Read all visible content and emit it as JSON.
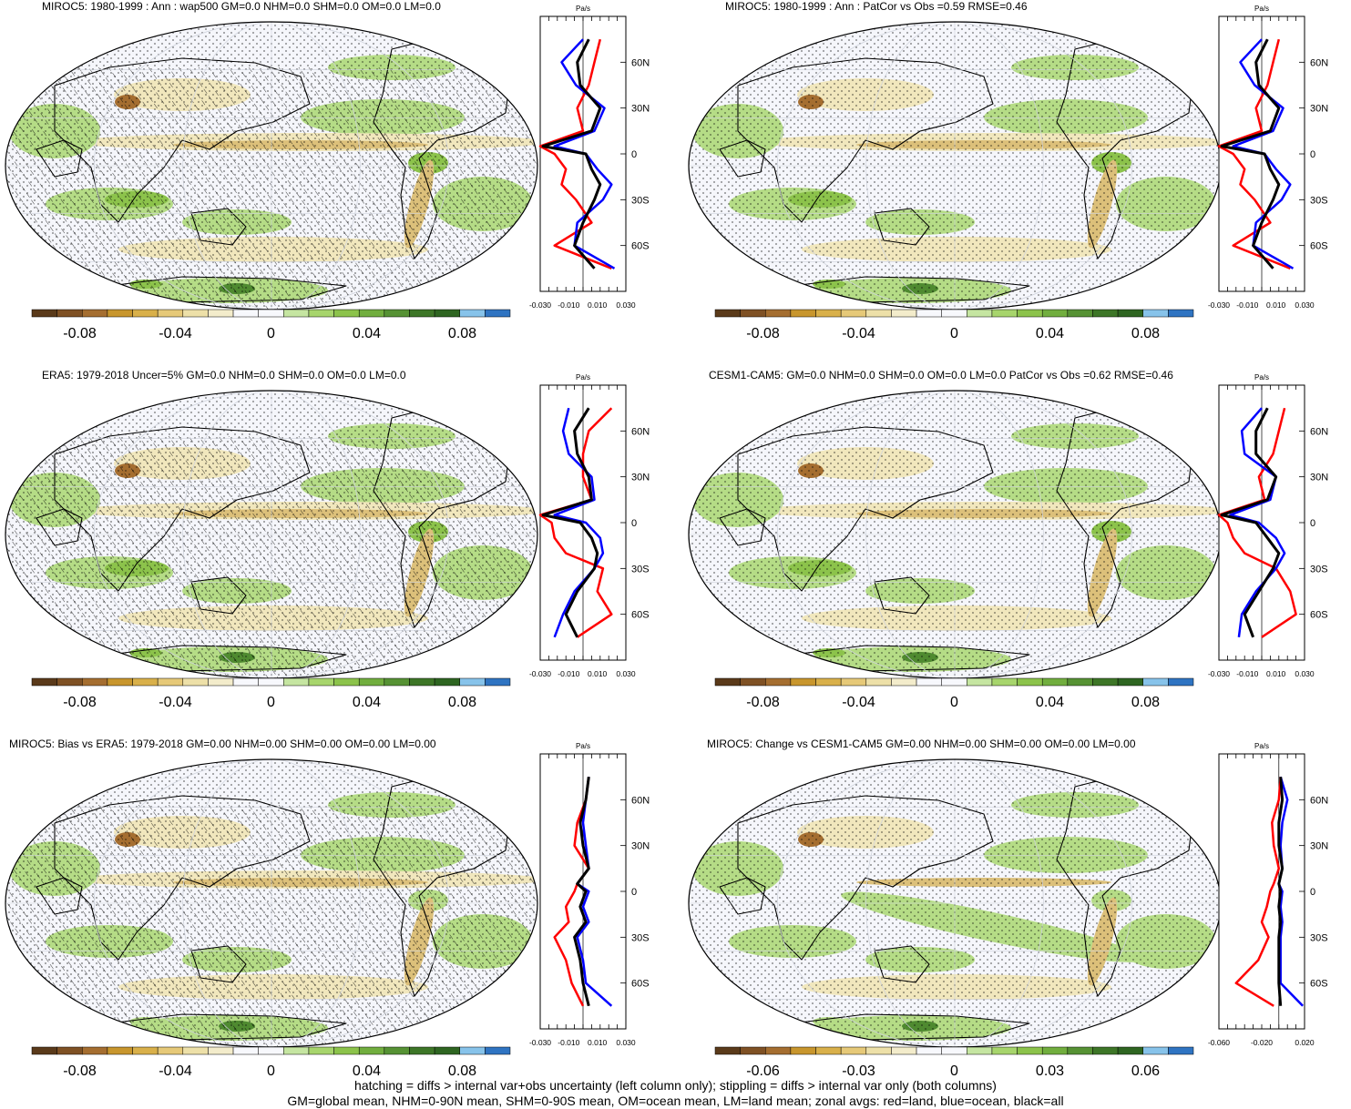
{
  "colors": {
    "scale": [
      "#5a3a1a",
      "#7f5124",
      "#a56e30",
      "#c8962d",
      "#d9b04a",
      "#e6c978",
      "#ede0a8",
      "#f3eccb",
      "#f7f8fc",
      "#f7f8fc",
      "#c5e5a1",
      "#a7d56c",
      "#8cc34b",
      "#71ae3e",
      "#569234",
      "#3d7627",
      "#2e6521",
      "#87c3ea",
      "#2f74c2"
    ],
    "land_line": "#ff0000",
    "ocean_line": "#0000ff",
    "all_line": "#000000"
  },
  "zonal_unit": "Pa/s",
  "lat_labels": [
    "60N",
    "30N",
    "0",
    "30S",
    "60S"
  ],
  "panels": [
    {
      "title": "MIROC5: 1980-1999 : Ann : wap500 GM=0.0 NHM=0.0 SHM=0.0 OM=0.0 LM=0.0",
      "cbar_labels": [
        "-0.08",
        "-0.04",
        "0",
        "0.04",
        "0.08"
      ],
      "zonal_ticks": [
        "-0.030",
        "-0.010",
        "0.010",
        "0.030"
      ]
    },
    {
      "title": "MIROC5: 1980-1999 : Ann : PatCor vs Obs =0.59 RMSE=0.46",
      "cbar_labels": [
        "-0.08",
        "-0.04",
        "0",
        "0.04",
        "0.08"
      ],
      "zonal_ticks": [
        "-0.030",
        "-0.010",
        "0.010",
        "0.030"
      ]
    },
    {
      "title": "ERA5: 1979-2018 Uncer=5% GM=0.0 NHM=0.0 SHM=0.0 OM=0.0 LM=0.0",
      "cbar_labels": [
        "-0.08",
        "-0.04",
        "0",
        "0.04",
        "0.08"
      ],
      "zonal_ticks": [
        "-0.030",
        "-0.010",
        "0.010",
        "0.030"
      ]
    },
    {
      "title": "CESM1-CAM5: GM=0.0 NHM=0.0 SHM=0.0 OM=0.0 LM=0.0 PatCor vs Obs =0.62 RMSE=0.46",
      "cbar_labels": [
        "-0.08",
        "-0.04",
        "0",
        "0.04",
        "0.08"
      ],
      "zonal_ticks": [
        "-0.030",
        "-0.010",
        "0.010",
        "0.030"
      ]
    },
    {
      "title": "MIROC5: Bias vs ERA5: 1979-2018 GM=0.00 NHM=0.00 SHM=0.00 OM=0.00 LM=0.00",
      "cbar_labels": [
        "-0.08",
        "-0.04",
        "0",
        "0.04",
        "0.08"
      ],
      "zonal_ticks": [
        "-0.030",
        "-0.010",
        "0.010",
        "0.030"
      ]
    },
    {
      "title": "MIROC5: Change vs CESM1-CAM5 GM=0.00 NHM=0.00 SHM=0.00 OM=0.00 LM=0.00",
      "cbar_labels": [
        "-0.06",
        "-0.03",
        "0",
        "0.03",
        "0.06"
      ],
      "zonal_ticks": [
        "-0.060",
        "-0.020",
        "0.020"
      ]
    }
  ],
  "footer": {
    "line1": "hatching = diffs > internal var+obs uncertainty (left column only); stippling = diffs > internal var only (both columns)",
    "line2": "GM=global mean, NHM=0-90N mean, SHM=0-90S mean, OM=ocean mean, LM=land mean; zonal avgs: red=land, blue=ocean, black=all"
  },
  "chart_data": [
    {
      "type": "heatmap",
      "title": "MIROC5: 1980-1999 : Ann : wap500 GM=0.0 NHM=0.0 SHM=0.0 OM=0.0 LM=0.0",
      "colorbar_range": [
        -0.1,
        0.1
      ],
      "colorbar_ticks": [
        -0.08,
        -0.04,
        0,
        0.04,
        0.08
      ],
      "hatching": true,
      "zonal_avg": {
        "unit": "Pa/s",
        "xlim": [
          -0.03,
          0.03
        ],
        "lat": [
          75,
          60,
          45,
          30,
          15,
          5,
          0,
          -10,
          -20,
          -30,
          -45,
          -60,
          -75
        ],
        "series": [
          {
            "name": "land",
            "values": [
              0.012,
              0.008,
              0.004,
              -0.004,
              0.0,
              -0.03,
              -0.02,
              -0.012,
              -0.015,
              -0.005,
              0.006,
              -0.02,
              0.02
            ]
          },
          {
            "name": "ocean",
            "values": [
              0.0,
              -0.015,
              -0.005,
              0.015,
              0.008,
              -0.02,
              0.002,
              0.01,
              0.02,
              0.014,
              -0.004,
              -0.006,
              0.022
            ]
          },
          {
            "name": "all",
            "values": [
              0.004,
              -0.004,
              -0.002,
              0.012,
              0.006,
              -0.028,
              0.002,
              0.006,
              0.012,
              0.008,
              0.0,
              -0.006,
              0.008
            ]
          }
        ]
      }
    },
    {
      "type": "heatmap",
      "title": "MIROC5: 1980-1999 : Ann : PatCor vs Obs =0.59 RMSE=0.46",
      "colorbar_range": [
        -0.1,
        0.1
      ],
      "colorbar_ticks": [
        -0.08,
        -0.04,
        0,
        0.04,
        0.08
      ],
      "hatching": false,
      "zonal_avg": {
        "unit": "Pa/s",
        "xlim": [
          -0.03,
          0.03
        ],
        "lat": [
          75,
          60,
          45,
          30,
          15,
          5,
          0,
          -10,
          -20,
          -30,
          -45,
          -60,
          -75
        ],
        "series": [
          {
            "name": "land",
            "values": [
              0.012,
              0.008,
              0.004,
              -0.004,
              0.0,
              -0.03,
              -0.02,
              -0.012,
              -0.015,
              -0.005,
              0.006,
              -0.02,
              0.02
            ]
          },
          {
            "name": "ocean",
            "values": [
              0.0,
              -0.015,
              -0.005,
              0.015,
              0.008,
              -0.02,
              0.002,
              0.01,
              0.02,
              0.014,
              -0.004,
              -0.006,
              0.022
            ]
          },
          {
            "name": "all",
            "values": [
              0.004,
              -0.004,
              -0.002,
              0.012,
              0.006,
              -0.028,
              0.002,
              0.006,
              0.012,
              0.008,
              0.0,
              -0.006,
              0.008
            ]
          }
        ]
      }
    },
    {
      "type": "heatmap",
      "title": "ERA5: 1979-2018 Uncer=5% GM=0.0 NHM=0.0 SHM=0.0 OM=0.0 LM=0.0",
      "colorbar_range": [
        -0.1,
        0.1
      ],
      "colorbar_ticks": [
        -0.08,
        -0.04,
        0,
        0.04,
        0.08
      ],
      "hatching": true,
      "zonal_avg": {
        "unit": "Pa/s",
        "xlim": [
          -0.03,
          0.03
        ],
        "lat": [
          75,
          60,
          45,
          30,
          15,
          5,
          0,
          -10,
          -20,
          -30,
          -45,
          -60,
          -75
        ],
        "series": [
          {
            "name": "land",
            "values": [
              0.02,
              0.004,
              0.0,
              0.0,
              0.006,
              -0.03,
              -0.022,
              -0.02,
              -0.012,
              0.014,
              0.01,
              0.02,
              -0.004
            ]
          },
          {
            "name": "ocean",
            "values": [
              -0.01,
              -0.014,
              -0.01,
              0.006,
              0.008,
              -0.02,
              0.002,
              0.012,
              0.014,
              0.008,
              -0.006,
              -0.014,
              -0.02
            ]
          },
          {
            "name": "all",
            "values": [
              0.004,
              -0.006,
              -0.004,
              0.004,
              0.006,
              -0.028,
              -0.002,
              0.006,
              0.01,
              0.008,
              -0.004,
              -0.012,
              -0.004
            ]
          }
        ]
      }
    },
    {
      "type": "heatmap",
      "title": "CESM1-CAM5: GM=0.0 NHM=0.0 SHM=0.0 OM=0.0 LM=0.0 PatCor vs Obs =0.62 RMSE=0.46",
      "colorbar_range": [
        -0.1,
        0.1
      ],
      "colorbar_ticks": [
        -0.08,
        -0.04,
        0,
        0.04,
        0.08
      ],
      "hatching": false,
      "zonal_avg": {
        "unit": "Pa/s",
        "xlim": [
          -0.03,
          0.03
        ],
        "lat": [
          75,
          60,
          45,
          30,
          15,
          5,
          0,
          -10,
          -20,
          -30,
          -45,
          -60,
          -75
        ],
        "series": [
          {
            "name": "land",
            "values": [
              0.016,
              0.012,
              0.008,
              -0.002,
              0.002,
              -0.03,
              -0.024,
              -0.02,
              -0.012,
              0.01,
              0.02,
              0.024,
              0.0
            ]
          },
          {
            "name": "ocean",
            "values": [
              0.0,
              -0.014,
              -0.012,
              0.01,
              0.006,
              -0.022,
              -0.002,
              0.01,
              0.016,
              0.01,
              -0.004,
              -0.014,
              -0.016
            ]
          },
          {
            "name": "all",
            "values": [
              0.004,
              -0.004,
              -0.004,
              0.01,
              0.004,
              -0.028,
              -0.004,
              0.004,
              0.012,
              0.008,
              -0.002,
              -0.012,
              -0.006
            ]
          }
        ]
      }
    },
    {
      "type": "heatmap",
      "title": "MIROC5: Bias vs ERA5: 1979-2018 GM=0.00 NHM=0.00 SHM=0.00 OM=0.00 LM=0.00",
      "colorbar_range": [
        -0.1,
        0.1
      ],
      "colorbar_ticks": [
        -0.08,
        -0.04,
        0,
        0.04,
        0.08
      ],
      "hatching": true,
      "zonal_avg": {
        "unit": "Pa/s",
        "xlim": [
          -0.03,
          0.03
        ],
        "lat": [
          75,
          60,
          45,
          30,
          15,
          5,
          0,
          -10,
          -20,
          -30,
          -45,
          -60,
          -75
        ],
        "series": [
          {
            "name": "land",
            "values": [
              0.004,
              0.002,
              -0.004,
              -0.006,
              0.004,
              -0.004,
              -0.006,
              -0.012,
              -0.01,
              -0.02,
              -0.012,
              -0.008,
              0.0
            ]
          },
          {
            "name": "ocean",
            "values": [
              0.004,
              0.002,
              0.0,
              0.002,
              0.004,
              -0.004,
              0.004,
              0.0,
              0.004,
              -0.004,
              0.0,
              0.002,
              0.02
            ]
          },
          {
            "name": "all",
            "values": [
              0.004,
              0.002,
              -0.002,
              0.0,
              0.004,
              -0.004,
              0.002,
              -0.002,
              0.002,
              -0.006,
              -0.002,
              0.0,
              0.004
            ]
          }
        ]
      }
    },
    {
      "type": "heatmap",
      "title": "MIROC5: Change vs CESM1-CAM5 GM=0.00 NHM=0.00 SHM=0.00 OM=0.00 LM=0.00",
      "colorbar_range": [
        -0.075,
        0.075
      ],
      "colorbar_ticks": [
        -0.06,
        -0.03,
        0,
        0.03,
        0.06
      ],
      "hatching": false,
      "zonal_avg": {
        "unit": "Pa/s",
        "xlim": [
          -0.07,
          0.03
        ],
        "lat": [
          75,
          60,
          45,
          30,
          15,
          5,
          0,
          -10,
          -20,
          -30,
          -45,
          -60,
          -75
        ],
        "series": [
          {
            "name": "land",
            "values": [
              0.002,
              0.0,
              -0.008,
              -0.006,
              0.0,
              -0.006,
              -0.01,
              -0.014,
              -0.02,
              -0.012,
              -0.024,
              -0.05,
              -0.006
            ]
          },
          {
            "name": "ocean",
            "values": [
              0.002,
              0.01,
              0.004,
              0.002,
              0.004,
              0.0,
              0.004,
              0.002,
              0.004,
              0.002,
              0.002,
              0.002,
              0.028
            ]
          },
          {
            "name": "all",
            "values": [
              0.002,
              0.004,
              0.0,
              0.0,
              0.004,
              0.0,
              0.002,
              0.0,
              0.002,
              0.0,
              0.0,
              0.0,
              0.002
            ]
          }
        ]
      }
    }
  ]
}
